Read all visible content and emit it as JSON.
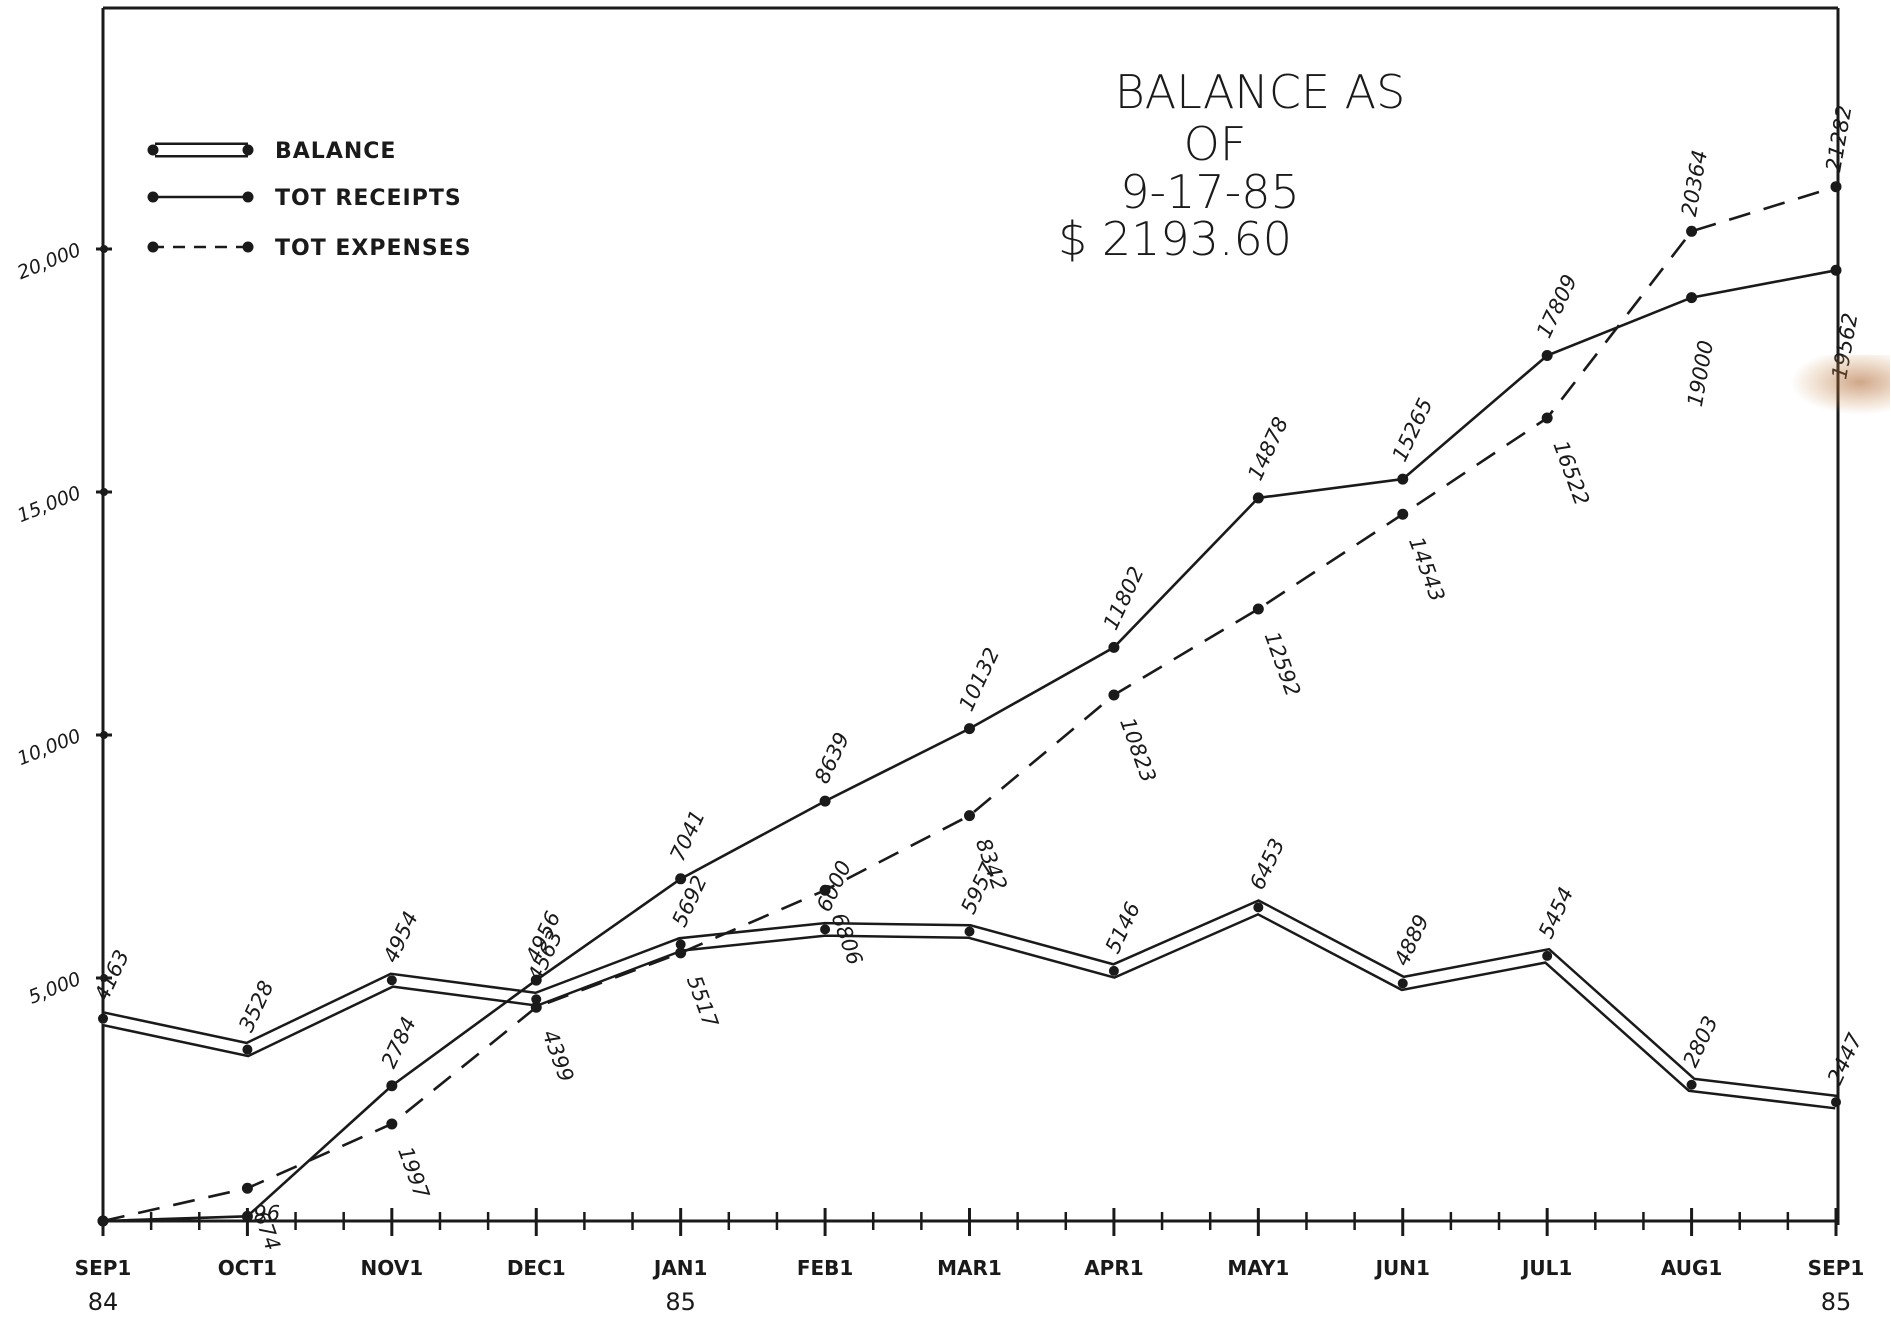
{
  "chart_data": {
    "type": "line",
    "title": [
      "BALANCE AS",
      "OF",
      "9-17-85",
      "$ 2193.60"
    ],
    "categories": [
      "SEP1",
      "OCT1",
      "NOV1",
      "DEC1",
      "JAN1",
      "FEB1",
      "MAR1",
      "APR1",
      "MAY1",
      "JUN1",
      "JUL1",
      "AUG1",
      "SEP1"
    ],
    "category_years": [
      "84",
      "",
      "",
      "",
      "85",
      "",
      "",
      "",
      "",
      "",
      "",
      "",
      "85"
    ],
    "yticks": [
      {
        "value": 5000,
        "label": "5,000"
      },
      {
        "value": 10000,
        "label": "10,000"
      },
      {
        "value": 15000,
        "label": "15,000"
      },
      {
        "value": 20000,
        "label": "20,000"
      }
    ],
    "ylim": [
      0,
      25000
    ],
    "legend_position": "top-left",
    "series": [
      {
        "name": "BALANCE",
        "style": "double",
        "values": [
          4163,
          3528,
          4954,
          4563,
          5692,
          6000,
          5957,
          5146,
          6453,
          4889,
          5454,
          2803,
          2447
        ],
        "labels": [
          "4163",
          "3528",
          "4954",
          "4563",
          "5692",
          "6000",
          "5957",
          "5146",
          "6453",
          "4889",
          "5454",
          "2803",
          "2447"
        ]
      },
      {
        "name": "TOT RECEIPTS",
        "style": "solid",
        "values": [
          0,
          96,
          2784,
          4956,
          7041,
          8639,
          10132,
          11802,
          14878,
          15265,
          17809,
          19000,
          19562
        ],
        "labels": [
          "",
          "96",
          "2784",
          "4956",
          "7041",
          "8639",
          "10132",
          "11802",
          "14878",
          "15265",
          "17809",
          "19000",
          "19562"
        ]
      },
      {
        "name": "TOT EXPENSES",
        "style": "dashed",
        "values": [
          0,
          674,
          1997,
          4399,
          5517,
          6806,
          8342,
          10823,
          12592,
          14543,
          16522,
          20364,
          21282
        ],
        "labels": [
          "",
          "674",
          "1997",
          "4399",
          "5517",
          "6806",
          "8342",
          "10823",
          "12592",
          "14543",
          "16522",
          "20364",
          "21282"
        ]
      }
    ]
  },
  "colors": {
    "ink": "#1a1a1a",
    "paper": "#ffffff",
    "stain": "#b06a30"
  }
}
